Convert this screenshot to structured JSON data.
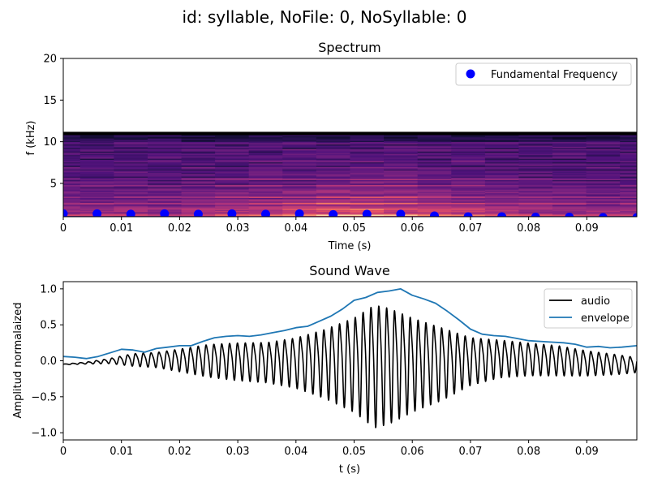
{
  "suptitle": "id: syllable, NoFile: 0, NoSyllable: 0",
  "colors": {
    "f0_points": "#0000ff",
    "audio": "#000000",
    "envelope": "#1f77b4"
  },
  "chart_data": [
    {
      "type": "heatmap",
      "title": "Spectrum",
      "xlabel": "Time (s)",
      "ylabel": "f (kHz)",
      "xlim": [
        0,
        0.0986
      ],
      "ylim": [
        1,
        20
      ],
      "xticks": [
        "0",
        "0.01",
        "0.02",
        "0.03",
        "0.04",
        "0.05",
        "0.06",
        "0.07",
        "0.08",
        "0.09"
      ],
      "yticks": [
        "5",
        "10",
        "15",
        "20"
      ],
      "colormap": "magma",
      "spectrogram_freq_max_khz": 11.0,
      "spectrogram_frame_times": [
        0,
        0.0058,
        0.0116,
        0.0174,
        0.0232,
        0.029,
        0.0348,
        0.0406,
        0.0464,
        0.0522,
        0.058,
        0.0638,
        0.0696,
        0.0754,
        0.0812,
        0.087,
        0.0928,
        0.0986
      ],
      "legend": {
        "position": "upper right",
        "entries": [
          "Fundamental Frequency"
        ]
      },
      "series": [
        {
          "name": "Fundamental Frequency",
          "type": "scatter",
          "x": [
            0,
            0.0058,
            0.0116,
            0.0174,
            0.0232,
            0.029,
            0.0348,
            0.0406,
            0.0464,
            0.0522,
            0.058,
            0.0638,
            0.0696,
            0.0754,
            0.0812,
            0.087,
            0.0928,
            0.0986
          ],
          "y": [
            1.35,
            1.35,
            1.3,
            1.35,
            1.3,
            1.35,
            1.3,
            1.35,
            1.25,
            1.3,
            1.3,
            1.1,
            1.0,
            1.0,
            0.95,
            0.95,
            0.9,
            0.9
          ]
        }
      ]
    },
    {
      "type": "line",
      "title": "Sound Wave",
      "xlabel": "t (s)",
      "ylabel": "Amplitud normalaized",
      "xlim": [
        0,
        0.0986
      ],
      "ylim": [
        -1.1,
        1.1
      ],
      "xticks": [
        "0",
        "0.01",
        "0.02",
        "0.03",
        "0.04",
        "0.05",
        "0.06",
        "0.07",
        "0.08",
        "0.09"
      ],
      "yticks": [
        "−1.0",
        "−0.5",
        "0.0",
        "0.5",
        "1.0"
      ],
      "legend": {
        "position": "upper right",
        "entries": [
          "audio",
          "envelope"
        ]
      },
      "series": [
        {
          "name": "envelope",
          "x": [
            0,
            0.002,
            0.004,
            0.006,
            0.008,
            0.01,
            0.012,
            0.014,
            0.016,
            0.018,
            0.02,
            0.022,
            0.024,
            0.026,
            0.028,
            0.03,
            0.032,
            0.034,
            0.036,
            0.038,
            0.04,
            0.042,
            0.044,
            0.046,
            0.048,
            0.05,
            0.052,
            0.054,
            0.056,
            0.058,
            0.06,
            0.062,
            0.064,
            0.066,
            0.068,
            0.07,
            0.072,
            0.074,
            0.076,
            0.078,
            0.08,
            0.082,
            0.084,
            0.086,
            0.088,
            0.09,
            0.092,
            0.094,
            0.096,
            0.0986
          ],
          "y": [
            0.06,
            0.05,
            0.03,
            0.06,
            0.11,
            0.16,
            0.15,
            0.12,
            0.17,
            0.19,
            0.21,
            0.21,
            0.27,
            0.32,
            0.34,
            0.35,
            0.34,
            0.36,
            0.39,
            0.42,
            0.46,
            0.48,
            0.55,
            0.62,
            0.72,
            0.84,
            0.88,
            0.95,
            0.97,
            1.0,
            0.91,
            0.86,
            0.8,
            0.69,
            0.57,
            0.44,
            0.37,
            0.35,
            0.34,
            0.31,
            0.28,
            0.27,
            0.26,
            0.25,
            0.23,
            0.19,
            0.2,
            0.18,
            0.19,
            0.21
          ]
        },
        {
          "name": "audio",
          "osc_period_s": 0.00135,
          "x": [
            0,
            0.004,
            0.008,
            0.012,
            0.016,
            0.02,
            0.025,
            0.03,
            0.035,
            0.04,
            0.045,
            0.05,
            0.0535,
            0.056,
            0.06,
            0.065,
            0.07,
            0.075,
            0.08,
            0.085,
            0.09,
            0.095,
            0.0986
          ],
          "amp": [
            0.005,
            0.015,
            0.04,
            0.1,
            0.12,
            0.18,
            0.26,
            0.3,
            0.32,
            0.4,
            0.55,
            0.75,
            0.98,
            0.92,
            0.75,
            0.58,
            0.38,
            0.3,
            0.26,
            0.24,
            0.2,
            0.16,
            0.12
          ],
          "offset": [
            -0.05,
            -0.03,
            0.0,
            0.02,
            0.02,
            0.02,
            0.02,
            0.01,
            0.0,
            0.0,
            0.0,
            0.0,
            0.0,
            0.0,
            0.0,
            0.0,
            0.02,
            0.05,
            0.04,
            0.02,
            -0.02,
            -0.04,
            -0.05
          ]
        }
      ]
    }
  ]
}
